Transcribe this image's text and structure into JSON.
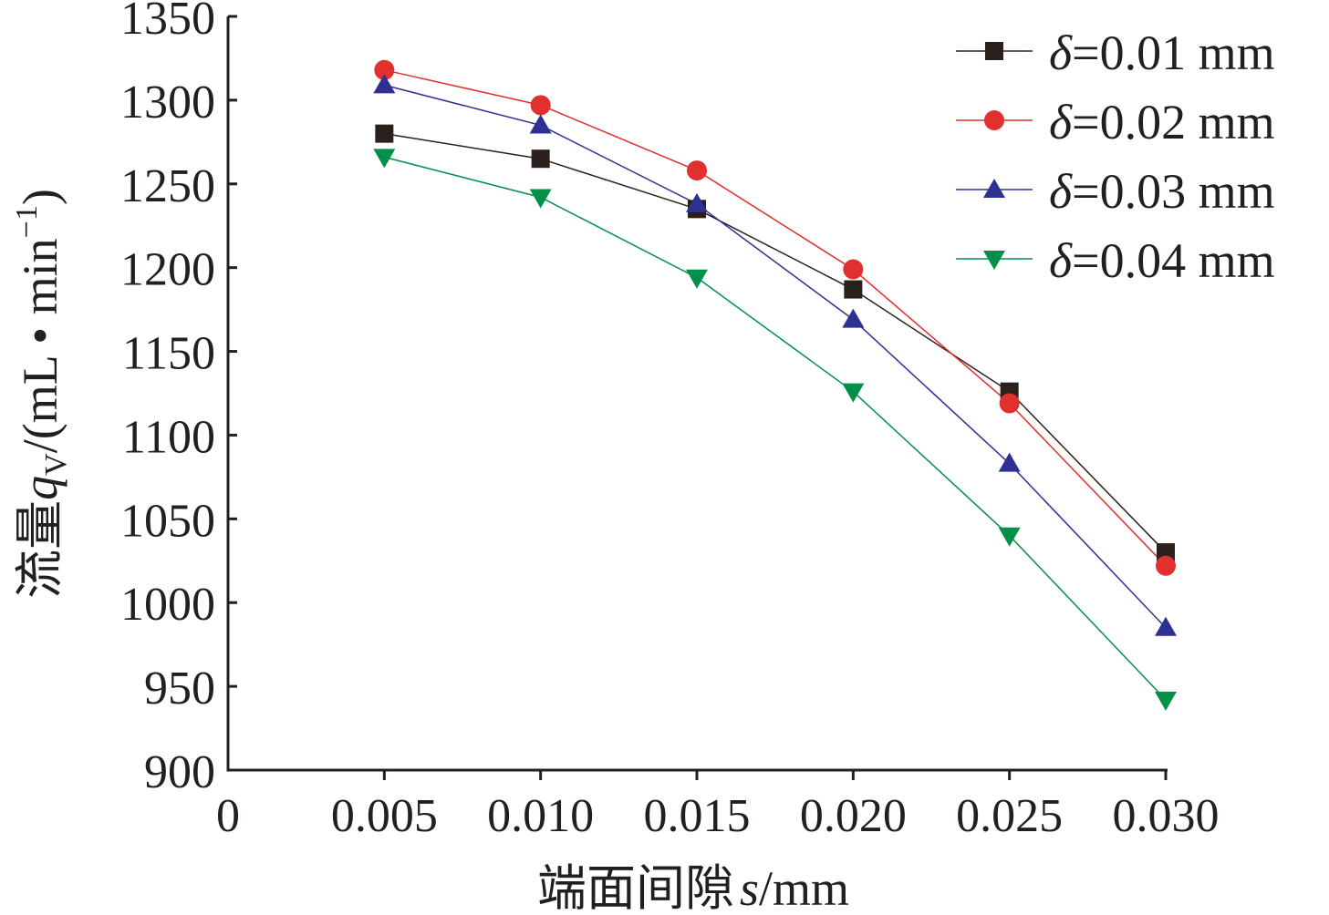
{
  "chart_data": {
    "type": "line",
    "title": "",
    "xlabel": "端面间隙 s/mm",
    "xlabel_parts": {
      "cn": "端面间隙",
      "var": "s",
      "unit": "/mm"
    },
    "ylabel": "流量qV/(mL • min−1)",
    "ylabel_parts": {
      "cn": "流量",
      "var": "q",
      "sub": "V",
      "unit": "/(mL • min",
      "sup": "−1",
      "close": ")"
    },
    "x": [
      0.005,
      0.01,
      0.015,
      0.02,
      0.025,
      0.03
    ],
    "xlim": [
      0,
      0.03
    ],
    "ylim": [
      900,
      1350
    ],
    "xticks": [
      "0",
      "0.005",
      "0.010",
      "0.015",
      "0.020",
      "0.025",
      "0.030"
    ],
    "xtick_values": [
      0,
      0.005,
      0.01,
      0.015,
      0.02,
      0.025,
      0.03
    ],
    "yticks": [
      900,
      950,
      1000,
      1050,
      1100,
      1150,
      1200,
      1250,
      1300,
      1350
    ],
    "grid": false,
    "legend_position": "top-right",
    "series": [
      {
        "name": "δ=0.01 mm",
        "var": "δ",
        "label": "=0.01 mm",
        "marker": "square",
        "color": "#2a211d",
        "values": [
          1280,
          1265,
          1235,
          1187,
          1126,
          1030
        ]
      },
      {
        "name": "δ=0.02 mm",
        "var": "δ",
        "label": "=0.02 mm",
        "marker": "circle",
        "color": "#e0312f",
        "values": [
          1318,
          1297,
          1258,
          1199,
          1119,
          1022
        ]
      },
      {
        "name": "δ=0.03 mm",
        "var": "δ",
        "label": "=0.03 mm",
        "marker": "triangle-up",
        "color": "#2e3192",
        "values": [
          1309,
          1285,
          1238,
          1169,
          1083,
          985
        ]
      },
      {
        "name": "δ=0.04 mm",
        "var": "δ",
        "label": "=0.04 mm",
        "marker": "triangle-down",
        "color": "#00904a",
        "values": [
          1266,
          1242,
          1194,
          1126,
          1040,
          942
        ]
      }
    ]
  }
}
